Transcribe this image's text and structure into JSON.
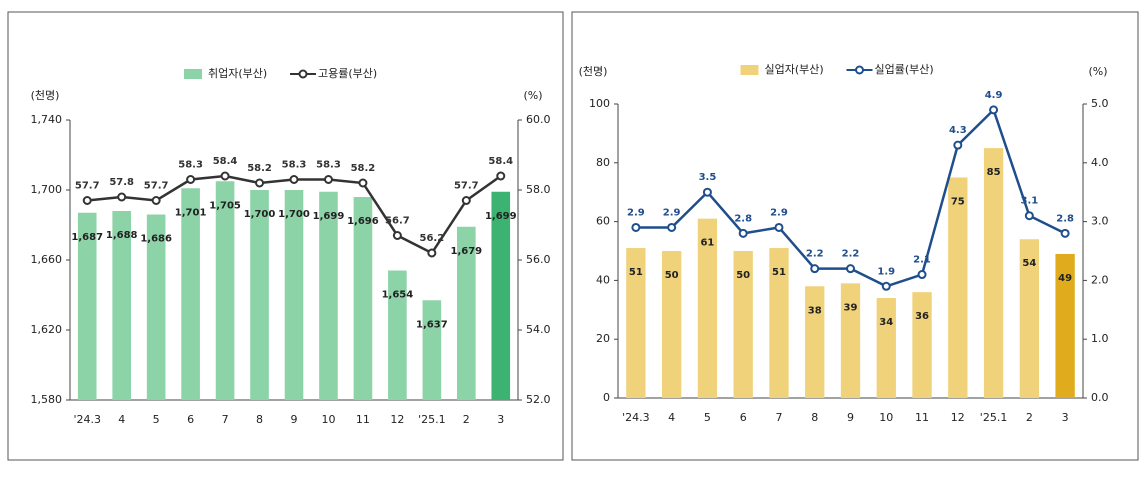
{
  "chart_data": [
    {
      "type": "bar_line",
      "y_unit": "(천명)",
      "y2_unit": "(%)",
      "categories": [
        "'24.3",
        "4",
        "5",
        "6",
        "7",
        "8",
        "9",
        "10",
        "11",
        "12",
        "'25.1",
        "2",
        "3"
      ],
      "series": [
        {
          "name": "취업자(부산)",
          "type": "bar",
          "color": "#8dd3a8",
          "colors": [
            "#8dd3a8",
            "#8dd3a8",
            "#8dd3a8",
            "#8dd3a8",
            "#8dd3a8",
            "#8dd3a8",
            "#8dd3a8",
            "#8dd3a8",
            "#8dd3a8",
            "#8dd3a8",
            "#8dd3a8",
            "#8dd3a8",
            "#3cb371"
          ],
          "values": [
            1687,
            1688,
            1686,
            1701,
            1705,
            1700,
            1700,
            1699,
            1696,
            1654,
            1637,
            1679,
            1699
          ],
          "value_labels": [
            "1,687",
            "1,688",
            "1,686",
            "1,701",
            "1,705",
            "1,700",
            "1,700",
            "1,699",
            "1,696",
            "1,654",
            "1,637",
            "1,679",
            "1,699"
          ]
        },
        {
          "name": "고용률(부산)",
          "type": "line",
          "axis": "y2",
          "color": "#333333",
          "values": [
            57.7,
            57.8,
            57.7,
            58.3,
            58.4,
            58.2,
            58.3,
            58.3,
            58.2,
            56.7,
            56.2,
            57.7,
            58.4
          ]
        }
      ],
      "ylim": [
        1580,
        1740
      ],
      "yticks": [
        {
          "value": 1580,
          "label": "1,580"
        },
        {
          "value": 1620,
          "label": "1,620"
        },
        {
          "value": 1660,
          "label": "1,660"
        },
        {
          "value": 1700,
          "label": "1,700"
        },
        {
          "value": 1740,
          "label": "1,740"
        }
      ],
      "y2lim": [
        52,
        60
      ],
      "y2ticks": [
        {
          "value": 52,
          "label": "52.0"
        },
        {
          "value": 54,
          "label": "54.0"
        },
        {
          "value": 56,
          "label": "56.0"
        },
        {
          "value": 58,
          "label": "58.0"
        },
        {
          "value": 60,
          "label": "60.0"
        }
      ]
    },
    {
      "type": "bar_line",
      "y_unit": "(천명)",
      "y2_unit": "(%)",
      "categories": [
        "'24.3",
        "4",
        "5",
        "6",
        "7",
        "8",
        "9",
        "10",
        "11",
        "12",
        "'25.1",
        "2",
        "3"
      ],
      "series": [
        {
          "name": "실업자(부산)",
          "type": "bar",
          "color": "#f0d27a",
          "colors": [
            "#f0d27a",
            "#f0d27a",
            "#f0d27a",
            "#f0d27a",
            "#f0d27a",
            "#f0d27a",
            "#f0d27a",
            "#f0d27a",
            "#f0d27a",
            "#f0d27a",
            "#f0d27a",
            "#f0d27a",
            "#e0ac1e"
          ],
          "values": [
            51,
            50,
            61,
            50,
            51,
            38,
            39,
            34,
            36,
            75,
            85,
            54,
            49
          ]
        },
        {
          "name": "실업률(부산)",
          "type": "line",
          "axis": "y2",
          "color": "#1f4e8c",
          "values": [
            2.9,
            2.9,
            3.5,
            2.8,
            2.9,
            2.2,
            2.2,
            1.9,
            2.1,
            4.3,
            4.9,
            3.1,
            2.8
          ]
        }
      ],
      "ylim": [
        0,
        100
      ],
      "yticks": [
        0,
        20,
        40,
        60,
        80,
        100
      ],
      "y2lim": [
        0,
        5
      ],
      "y2ticks": [
        {
          "value": 0,
          "label": "0.0"
        },
        {
          "value": 1,
          "label": "1.0"
        },
        {
          "value": 2,
          "label": "2.0"
        },
        {
          "value": 3,
          "label": "3.0"
        },
        {
          "value": 4,
          "label": "4.0"
        },
        {
          "value": 5,
          "label": "5.0"
        }
      ]
    }
  ]
}
